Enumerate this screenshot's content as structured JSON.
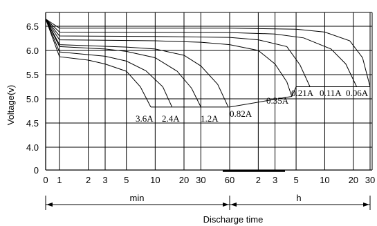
{
  "chart_data": {
    "type": "line",
    "title": "",
    "ylabel": "Voltage(v)",
    "xlabel": "Discharge time",
    "ylim": [
      0,
      6.75
    ],
    "y_ticks": [
      {
        "value": 0,
        "label": "0"
      },
      {
        "value": 4.0,
        "label": "4.0"
      },
      {
        "value": 4.5,
        "label": "4.5"
      },
      {
        "value": 5.0,
        "label": "5.0"
      },
      {
        "value": 5.5,
        "label": "5.5"
      },
      {
        "value": 6.0,
        "label": "6.0"
      },
      {
        "value": 6.5,
        "label": "6.5"
      }
    ],
    "y_break": "axis is broken between 0 and 4.0",
    "x_scale": "log (minutes, then hours)",
    "x_ticks": [
      {
        "label": "0",
        "minutes": 0
      },
      {
        "label": "1",
        "minutes": 1
      },
      {
        "label": "2",
        "minutes": 2
      },
      {
        "label": "3",
        "minutes": 3
      },
      {
        "label": "5",
        "minutes": 5
      },
      {
        "label": "10",
        "minutes": 10
      },
      {
        "label": "20",
        "minutes": 20
      },
      {
        "label": "30",
        "minutes": 30
      },
      {
        "label": "60",
        "minutes": 60
      },
      {
        "label": "2",
        "minutes": 120
      },
      {
        "label": "3",
        "minutes": 180
      },
      {
        "label": "5",
        "minutes": 300
      },
      {
        "label": "10",
        "minutes": 600
      },
      {
        "label": "20",
        "minutes": 1200
      },
      {
        "label": "30",
        "minutes": 1800
      }
    ],
    "unit_labels": {
      "minutes": "min",
      "hours": "h"
    },
    "grid": true,
    "series": [
      {
        "name": "3.6A",
        "points": [
          [
            0,
            6.65
          ],
          [
            1,
            5.87
          ],
          [
            2,
            5.8
          ],
          [
            3,
            5.72
          ],
          [
            5,
            5.57
          ],
          [
            7,
            5.25
          ],
          [
            9,
            4.83
          ]
        ]
      },
      {
        "name": "2.4A",
        "points": [
          [
            0,
            6.65
          ],
          [
            1,
            5.97
          ],
          [
            3,
            5.88
          ],
          [
            5,
            5.78
          ],
          [
            8,
            5.58
          ],
          [
            12,
            5.25
          ],
          [
            15,
            4.83
          ]
        ]
      },
      {
        "name": "1.2A",
        "points": [
          [
            0,
            6.65
          ],
          [
            1,
            6.08
          ],
          [
            3,
            6.03
          ],
          [
            5,
            5.98
          ],
          [
            10,
            5.85
          ],
          [
            17,
            5.57
          ],
          [
            24,
            5.22
          ],
          [
            30,
            4.83
          ]
        ]
      },
      {
        "name": "0.82A",
        "points": [
          [
            0,
            6.65
          ],
          [
            1,
            6.12
          ],
          [
            5,
            6.07
          ],
          [
            10,
            6.03
          ],
          [
            20,
            5.9
          ],
          [
            30,
            5.68
          ],
          [
            45,
            5.3
          ],
          [
            58,
            4.83
          ]
        ]
      },
      {
        "name": "0.35A",
        "points": [
          [
            0,
            6.65
          ],
          [
            1,
            6.22
          ],
          [
            10,
            6.2
          ],
          [
            30,
            6.17
          ],
          [
            60,
            6.12
          ],
          [
            120,
            6.0
          ],
          [
            180,
            5.72
          ],
          [
            240,
            5.35
          ],
          [
            270,
            5.05
          ]
        ]
      },
      {
        "name": "0.21A",
        "points": [
          [
            0,
            6.65
          ],
          [
            1,
            6.3
          ],
          [
            10,
            6.29
          ],
          [
            60,
            6.27
          ],
          [
            120,
            6.22
          ],
          [
            240,
            6.08
          ],
          [
            330,
            5.7
          ],
          [
            420,
            5.25
          ]
        ]
      },
      {
        "name": "0.11A",
        "points": [
          [
            0,
            6.65
          ],
          [
            1,
            6.38
          ],
          [
            60,
            6.37
          ],
          [
            180,
            6.34
          ],
          [
            360,
            6.26
          ],
          [
            700,
            6.03
          ],
          [
            1000,
            5.72
          ],
          [
            1300,
            5.25
          ]
        ]
      },
      {
        "name": "0.06A",
        "points": [
          [
            0,
            6.65
          ],
          [
            1,
            6.46
          ],
          [
            60,
            6.46
          ],
          [
            300,
            6.44
          ],
          [
            600,
            6.38
          ],
          [
            1100,
            6.2
          ],
          [
            1500,
            5.85
          ],
          [
            1800,
            5.25
          ]
        ]
      }
    ],
    "annotations": [
      {
        "text": "3.6A"
      },
      {
        "text": "2.4A"
      },
      {
        "text": "1.2A"
      },
      {
        "text": "0.82A"
      },
      {
        "text": "0.35A"
      },
      {
        "text": "0.21A"
      },
      {
        "text": "0.11A"
      },
      {
        "text": "0.06A"
      }
    ]
  }
}
